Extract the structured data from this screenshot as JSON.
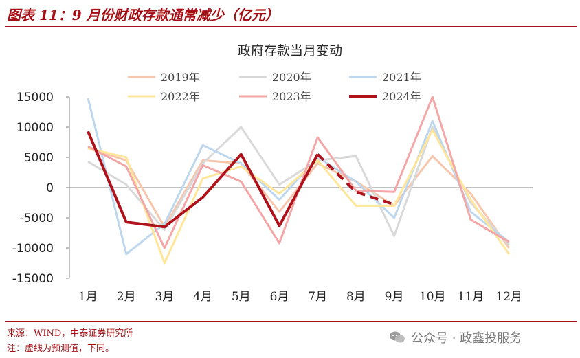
{
  "header": {
    "title": "图表 11：9 月份财政存款通常减少（亿元）"
  },
  "footer": {
    "source": "来源：WIND，中泰证券研究所",
    "note": "注：虚线为预测值，下同。"
  },
  "watermark": {
    "text": "公众号 · 政鑫投服务",
    "icon": "wechat-icon"
  },
  "chart_data": {
    "type": "line",
    "title": "政府存款当月变动",
    "xlabel": "",
    "ylabel": "",
    "categories": [
      "1月",
      "2月",
      "3月",
      "4月",
      "5月",
      "6月",
      "7月",
      "8月",
      "9月",
      "10月",
      "11月",
      "12月"
    ],
    "ylim": [
      -15000,
      15000
    ],
    "yticks": [
      15000,
      10000,
      5000,
      0,
      -5000,
      -10000,
      -15000
    ],
    "grid": false,
    "legend_position": "top",
    "series": [
      {
        "name": "2019年",
        "color": "#f7c6ad",
        "values": [
          6500,
          4500,
          -6500,
          4500,
          4000,
          -4000,
          4000,
          1000,
          -3000,
          5200,
          -1000,
          -10000
        ]
      },
      {
        "name": "2020年",
        "color": "#d9d9d9",
        "values": [
          4300,
          500,
          -7000,
          4000,
          10000,
          500,
          4500,
          5200,
          -8000,
          10000,
          -2500,
          -9500
        ]
      },
      {
        "name": "2021年",
        "color": "#bdd7ee",
        "values": [
          14800,
          -11000,
          -6000,
          7000,
          4000,
          -2000,
          5000,
          1000,
          -5000,
          11000,
          -4000,
          -9000
        ]
      },
      {
        "name": "2022年",
        "color": "#ffe699",
        "values": [
          6500,
          5000,
          -12500,
          1500,
          3500,
          -1000,
          4500,
          -3000,
          -3000,
          9500,
          -2000,
          -11000
        ]
      },
      {
        "name": "2023年",
        "color": "#f4a6a6",
        "values": [
          6800,
          3500,
          -10000,
          3700,
          1000,
          -9200,
          8300,
          -500,
          -700,
          15000,
          -5300,
          -9000
        ]
      },
      {
        "name": "2024年",
        "color": "#b0121b",
        "values": [
          9300,
          -5700,
          -6500,
          -1600,
          5500,
          -6300,
          5500,
          -700,
          -2800,
          null,
          null,
          null
        ],
        "forecast_from": "7月"
      }
    ]
  }
}
